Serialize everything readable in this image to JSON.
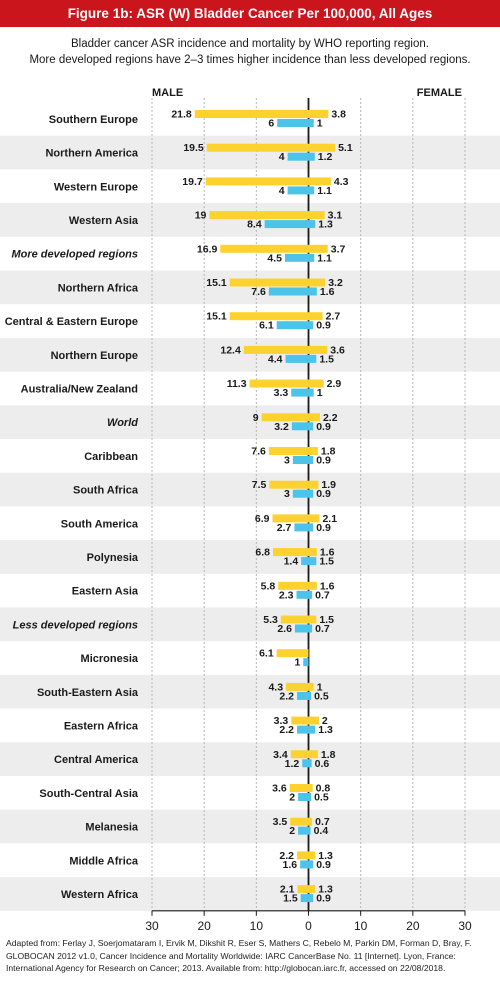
{
  "header": {
    "title": "Figure 1b: ASR (W) Bladder Cancer Per 100,000, All Ages"
  },
  "subtitle": {
    "line1": "Bladder cancer ASR incidence and mortality by WHO reporting region.",
    "line2": "More developed regions have 2–3 times higher incidence than less developed regions."
  },
  "footnote": "Adapted from: Ferlay J, Soerjomataram I, Ervik M, Dikshit R, Eser S, Mathers C, Rebelo M, Parkin DM, Forman D, Bray, F. GLOBOCAN 2012 v1.0, Cancer Incidence and Mortality Worldwide: IARC CancerBase No. 11 [Internet]. Lyon, France: International Agency for Research on Cancer; 2013. Available from: http://globocan.iarc.fr, accessed on 22/08/2018.",
  "colors": {
    "header_bg": "#c9151b",
    "incidence": "#fdd22f",
    "mortality": "#4cc4ea",
    "axis": "#1a1a1a",
    "grid": "#b5b5b5",
    "band": "#ededed"
  },
  "chart_data": {
    "type": "bar",
    "orientation": "horizontal",
    "layout": "butterfly",
    "left_label": "MALE",
    "right_label": "FEMALE",
    "xlim": [
      -30,
      30
    ],
    "xticks": [
      -30,
      -20,
      -10,
      0,
      10,
      20,
      30
    ],
    "xtick_labels": [
      "30",
      "20",
      "10",
      "0",
      "10",
      "20",
      "30"
    ],
    "grid": true,
    "categories": [
      "Southern Europe",
      "Northern America",
      "Western Europe",
      "Western Asia",
      "More developed regions",
      "Northern Africa",
      "Central & Eastern Europe",
      "Northern Europe",
      "Australia/New Zealand",
      "World",
      "Caribbean",
      "South Africa",
      "South America",
      "Polynesia",
      "Eastern Asia",
      "Less developed regions",
      "Micronesia",
      "South-Eastern Asia",
      "Eastern Africa",
      "Central America",
      "South-Central Asia",
      "Melanesia",
      "Middle Africa",
      "Western Africa"
    ],
    "italic_categories": [
      "More developed regions",
      "World",
      "Less developed regions"
    ],
    "male_incidence": [
      21.8,
      19.5,
      19.7,
      19,
      16.9,
      15.1,
      15.1,
      12.4,
      11.3,
      9,
      7.6,
      7.5,
      6.9,
      6.8,
      5.8,
      5.3,
      6.1,
      4.3,
      3.3,
      3.4,
      3.6,
      3.5,
      2.2,
      2.1
    ],
    "male_mortality": [
      6,
      4,
      4,
      8.4,
      4.5,
      7.6,
      6.1,
      4.4,
      3.3,
      3.2,
      3,
      3,
      2.7,
      1.4,
      2.3,
      2.6,
      1,
      2.2,
      2.2,
      1.2,
      2,
      2,
      1.6,
      1.5
    ],
    "female_incidence": [
      3.8,
      5.1,
      4.3,
      3.1,
      3.7,
      3.2,
      2.7,
      3.6,
      2.9,
      2.2,
      1.8,
      1.9,
      2.1,
      1.6,
      1.6,
      1.5,
      null,
      1,
      2,
      1.8,
      0.8,
      0.7,
      1.3,
      1.3
    ],
    "female_mortality": [
      1,
      1.2,
      1.1,
      1.3,
      1.1,
      1.6,
      0.9,
      1.5,
      1,
      0.9,
      0.9,
      0.9,
      0.9,
      1.5,
      0.7,
      0.7,
      null,
      0.5,
      1.3,
      0.6,
      0.5,
      0.4,
      0.9,
      0.9
    ]
  }
}
